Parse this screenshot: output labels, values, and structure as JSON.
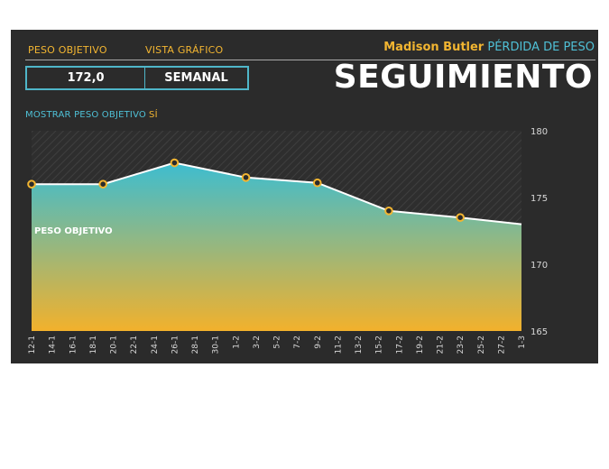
{
  "header": {
    "target_weight_label": "PESO OBJETIVO",
    "view_label": "VISTA GRÁFICO",
    "target_weight_value": "172,0",
    "view_value": "SEMANAL",
    "user_name": "Madison Butler",
    "subtitle": "PÉRDIDA DE PESO",
    "title": "SEGUIMIENTO",
    "show_target_label": "MOSTRAR PESO OBJETIVO",
    "show_target_value": "SÍ"
  },
  "colors": {
    "panel_bg": "#2b2b2b",
    "accent_yellow": "#f2b531",
    "accent_teal": "#4fc0d6",
    "fill_top": "#3dbdd0",
    "fill_bottom": "#f2b12c",
    "point_fill": "#2b2b2b",
    "point_stroke": "#f2b531",
    "line": "#ffffff"
  },
  "chart_data": {
    "type": "area",
    "x": [
      "12-1",
      "14-1",
      "16-1",
      "18-1",
      "20-1",
      "22-1",
      "24-1",
      "26-1",
      "28-1",
      "30-1",
      "1-2",
      "3-2",
      "5-2",
      "7-2",
      "9-2",
      "11-2",
      "13-2",
      "15-2",
      "17-2",
      "19-2",
      "21-2",
      "23-2",
      "25-2",
      "27-2",
      "1-3"
    ],
    "series": [
      {
        "name": "",
        "points": [
          {
            "x": "12-1",
            "y": 176.0,
            "marker": true
          },
          {
            "x": "19-1",
            "y": 176.0,
            "marker": true
          },
          {
            "x": "26-1",
            "y": 177.6,
            "marker": true
          },
          {
            "x": "2-2",
            "y": 176.5,
            "marker": true
          },
          {
            "x": "9-2",
            "y": 176.1,
            "marker": true
          },
          {
            "x": "16-2",
            "y": 174.0,
            "marker": true
          },
          {
            "x": "23-2",
            "y": 173.5,
            "marker": true
          },
          {
            "x": "1-3",
            "y": 173.0,
            "marker": false
          }
        ]
      }
    ],
    "ylim": [
      165,
      180
    ],
    "yticks": [
      165,
      170,
      175,
      180
    ],
    "target_label": "PESO OBJETIVO",
    "hatched_region": "above line",
    "grid": false
  }
}
